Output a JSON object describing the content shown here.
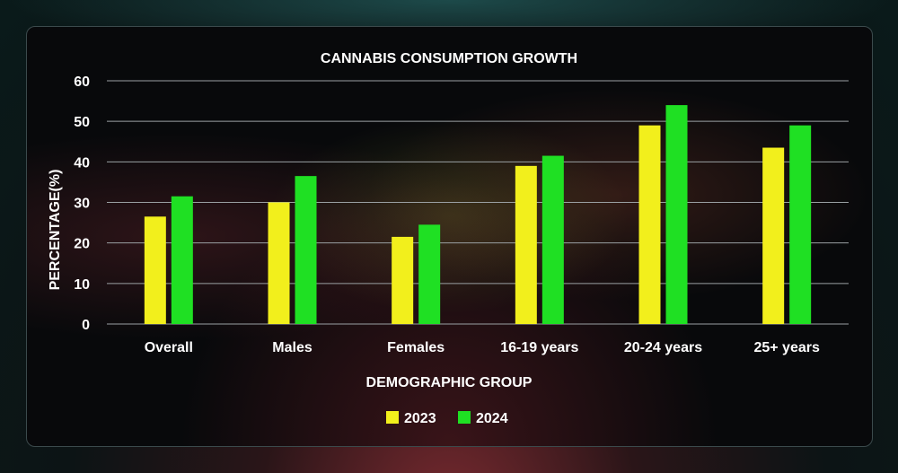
{
  "chart_data": {
    "type": "bar",
    "title": "CANNABIS CONSUMPTION GROWTH",
    "xlabel": "DEMOGRAPHIC GROUP",
    "ylabel": "PERCENTAGE(%)",
    "ylim": [
      0,
      60
    ],
    "yticks": [
      0,
      10,
      20,
      30,
      40,
      50,
      60
    ],
    "grid": true,
    "legend_position": "bottom-center",
    "categories": [
      "Overall",
      "Males",
      "Females",
      "16-19 years",
      "20-24 years",
      "25+ years"
    ],
    "series": [
      {
        "name": "2023",
        "color": "#f2ef1c",
        "values": [
          26.5,
          30,
          21.5,
          39,
          49,
          43.5
        ]
      },
      {
        "name": "2024",
        "color": "#1fe023",
        "values": [
          31.5,
          36.5,
          24.5,
          41.5,
          54,
          49
        ]
      }
    ]
  }
}
